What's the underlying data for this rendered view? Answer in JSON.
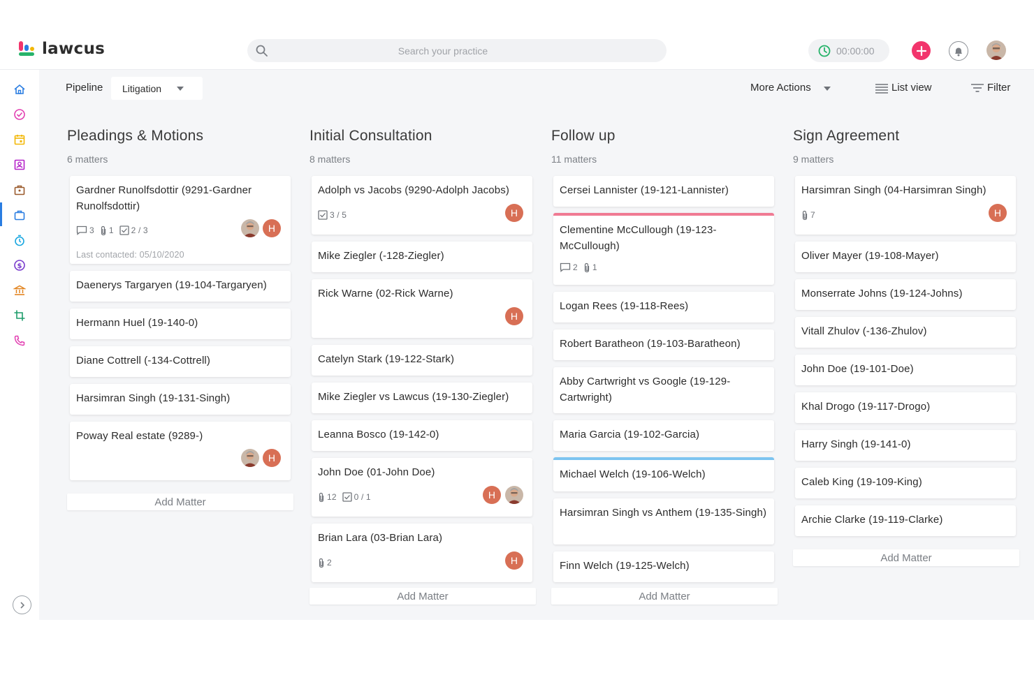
{
  "app": {
    "brand": "lawcus"
  },
  "header": {
    "search_placeholder": "Search your practice",
    "timer": "00:00:00",
    "brand_colors": {
      "accent": "#f2356c",
      "timer_green": "#27b36a",
      "active_blue": "#2a7de1"
    }
  },
  "toolbar": {
    "pipeline_label": "Pipeline",
    "pipeline_value": "Litigation",
    "more_actions": "More Actions",
    "list_view": "List view",
    "filter": "Filter"
  },
  "sidebar": {
    "items": [
      {
        "icon": "home-icon",
        "color": "#2a7de1"
      },
      {
        "icon": "check-circle-icon",
        "color": "#e23fb1"
      },
      {
        "icon": "calendar-icon",
        "color": "#f2b705"
      },
      {
        "icon": "contacts-icon",
        "color": "#b521c9"
      },
      {
        "icon": "briefcase-icon",
        "color": "#9a5a2c"
      },
      {
        "icon": "matters-icon",
        "color": "#2a7de1"
      },
      {
        "icon": "stopwatch-icon",
        "color": "#1aa7e0"
      },
      {
        "icon": "dollar-icon",
        "color": "#7a3ccd"
      },
      {
        "icon": "bank-icon",
        "color": "#e2841f"
      },
      {
        "icon": "crop-icon",
        "color": "#1d9c6a"
      },
      {
        "icon": "phone-icon",
        "color": "#e23fb1"
      }
    ]
  },
  "columns": [
    {
      "title": "Pleadings & Motions",
      "count": "6 matters",
      "add_label": "Add Matter",
      "cards": [
        {
          "title": "Gardner Runolfsdottir (9291-Gardner Runolfsdottir)",
          "comments": "3",
          "attachments": "1",
          "tasks": "2 / 3",
          "last_contacted": "Last contacted: 05/10/2020",
          "avatars": [
            "photo",
            "H"
          ]
        },
        {
          "title": "Daenerys Targaryen (19-104-Targaryen)"
        },
        {
          "title": "Hermann Huel (19-140-0)"
        },
        {
          "title": "Diane Cottrell (-134-Cottrell)"
        },
        {
          "title": "Harsimran Singh (19-131-Singh)"
        },
        {
          "title": "Poway Real estate (9289-)",
          "avatars": [
            "photo",
            "H"
          ]
        }
      ]
    },
    {
      "title": "Initial Consultation",
      "count": "8 matters",
      "add_label": "Add Matter",
      "cards": [
        {
          "title": "Adolph vs Jacobs (9290-Adolph Jacobs)",
          "tasks": "3 / 5",
          "avatars": [
            "H"
          ]
        },
        {
          "title": "Mike Ziegler (-128-Ziegler)"
        },
        {
          "title": "Rick Warne (02-Rick Warne)",
          "avatars": [
            "H"
          ]
        },
        {
          "title": "Catelyn Stark (19-122-Stark)"
        },
        {
          "title": "Mike Ziegler vs Lawcus (19-130-Ziegler)"
        },
        {
          "title": "Leanna Bosco (19-142-0)"
        },
        {
          "title": "John Doe (01-John Doe)",
          "attachments": "12",
          "tasks": "0 / 1",
          "avatars": [
            "H",
            "photo"
          ]
        },
        {
          "title": "Brian Lara (03-Brian Lara)",
          "attachments": "2",
          "avatars": [
            "H"
          ]
        }
      ]
    },
    {
      "title": "Follow up",
      "count": "11 matters",
      "add_label": "Add Matter",
      "cards": [
        {
          "title": "Cersei Lannister (19-121-Lannister)"
        },
        {
          "title": "Clementine McCullough (19-123-McCullough)",
          "comments": "2",
          "attachments": "1",
          "bar_color": "#f07a93"
        },
        {
          "title": "Logan Rees (19-118-Rees)"
        },
        {
          "title": "Robert Baratheon (19-103-Baratheon)"
        },
        {
          "title": "Abby Cartwright vs Google (19-129-Cartwright)"
        },
        {
          "title": "Maria Garcia (19-102-Garcia)"
        },
        {
          "title": "Michael Welch (19-106-Welch)",
          "bar_color": "#7cc4f0"
        },
        {
          "title": "Harsimran Singh vs Anthem (19-135-Singh)"
        },
        {
          "title": "Finn Welch (19-125-Welch)"
        }
      ]
    },
    {
      "title": "Sign Agreement",
      "count": "9 matters",
      "add_label": "Add Matter",
      "cards": [
        {
          "title": "Harsimran Singh (04-Harsimran Singh)",
          "attachments": "7",
          "avatars": [
            "H"
          ]
        },
        {
          "title": "Oliver Mayer (19-108-Mayer)"
        },
        {
          "title": "Monserrate Johns (19-124-Johns)"
        },
        {
          "title": "Vitall Zhulov (-136-Zhulov)"
        },
        {
          "title": "John Doe (19-101-Doe)"
        },
        {
          "title": "Khal Drogo (19-117-Drogo)"
        },
        {
          "title": "Harry Singh (19-141-0)"
        },
        {
          "title": "Caleb King (19-109-King)"
        },
        {
          "title": "Archie Clarke (19-119-Clarke)"
        }
      ]
    }
  ]
}
